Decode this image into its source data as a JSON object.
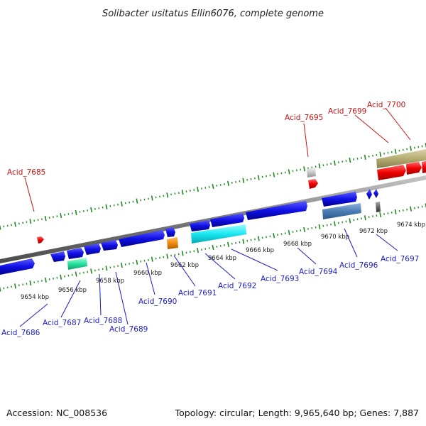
{
  "title": "Solibacter usitatus Ellin6076, complete genome",
  "accession": "Accession: NC_008536",
  "topology": "Topology: circular; Length: 9,965,640 bp; Genes: 7,887",
  "colors": {
    "plus_label": "#d01010",
    "minus_label": "#1a1ad0",
    "backbone": "#888888",
    "tick": "#1e8a1e"
  },
  "kbp_ticks": [
    "9654 kbp",
    "9656 kbp",
    "9658 kbp",
    "9660 kbp",
    "9662 kbp",
    "9664 kbp",
    "9666 kbp",
    "9668 kbp",
    "9670 kbp",
    "9672 kbp",
    "9674 kbp"
  ],
  "genes_plus": [
    {
      "label": "Acid_7685"
    },
    {
      "label": "Acid_7695"
    },
    {
      "label": "Acid_7699"
    },
    {
      "label": "Acid_7700"
    }
  ],
  "genes_minus": [
    {
      "label": "Acid_7686"
    },
    {
      "label": "Acid_7687"
    },
    {
      "label": "Acid_7688"
    },
    {
      "label": "Acid_7689"
    },
    {
      "label": "Acid_7690"
    },
    {
      "label": "Acid_7691"
    },
    {
      "label": "Acid_7692"
    },
    {
      "label": "Acid_7693"
    },
    {
      "label": "Acid_7694"
    },
    {
      "label": "Acid_7696"
    },
    {
      "label": "Acid_7697"
    }
  ]
}
